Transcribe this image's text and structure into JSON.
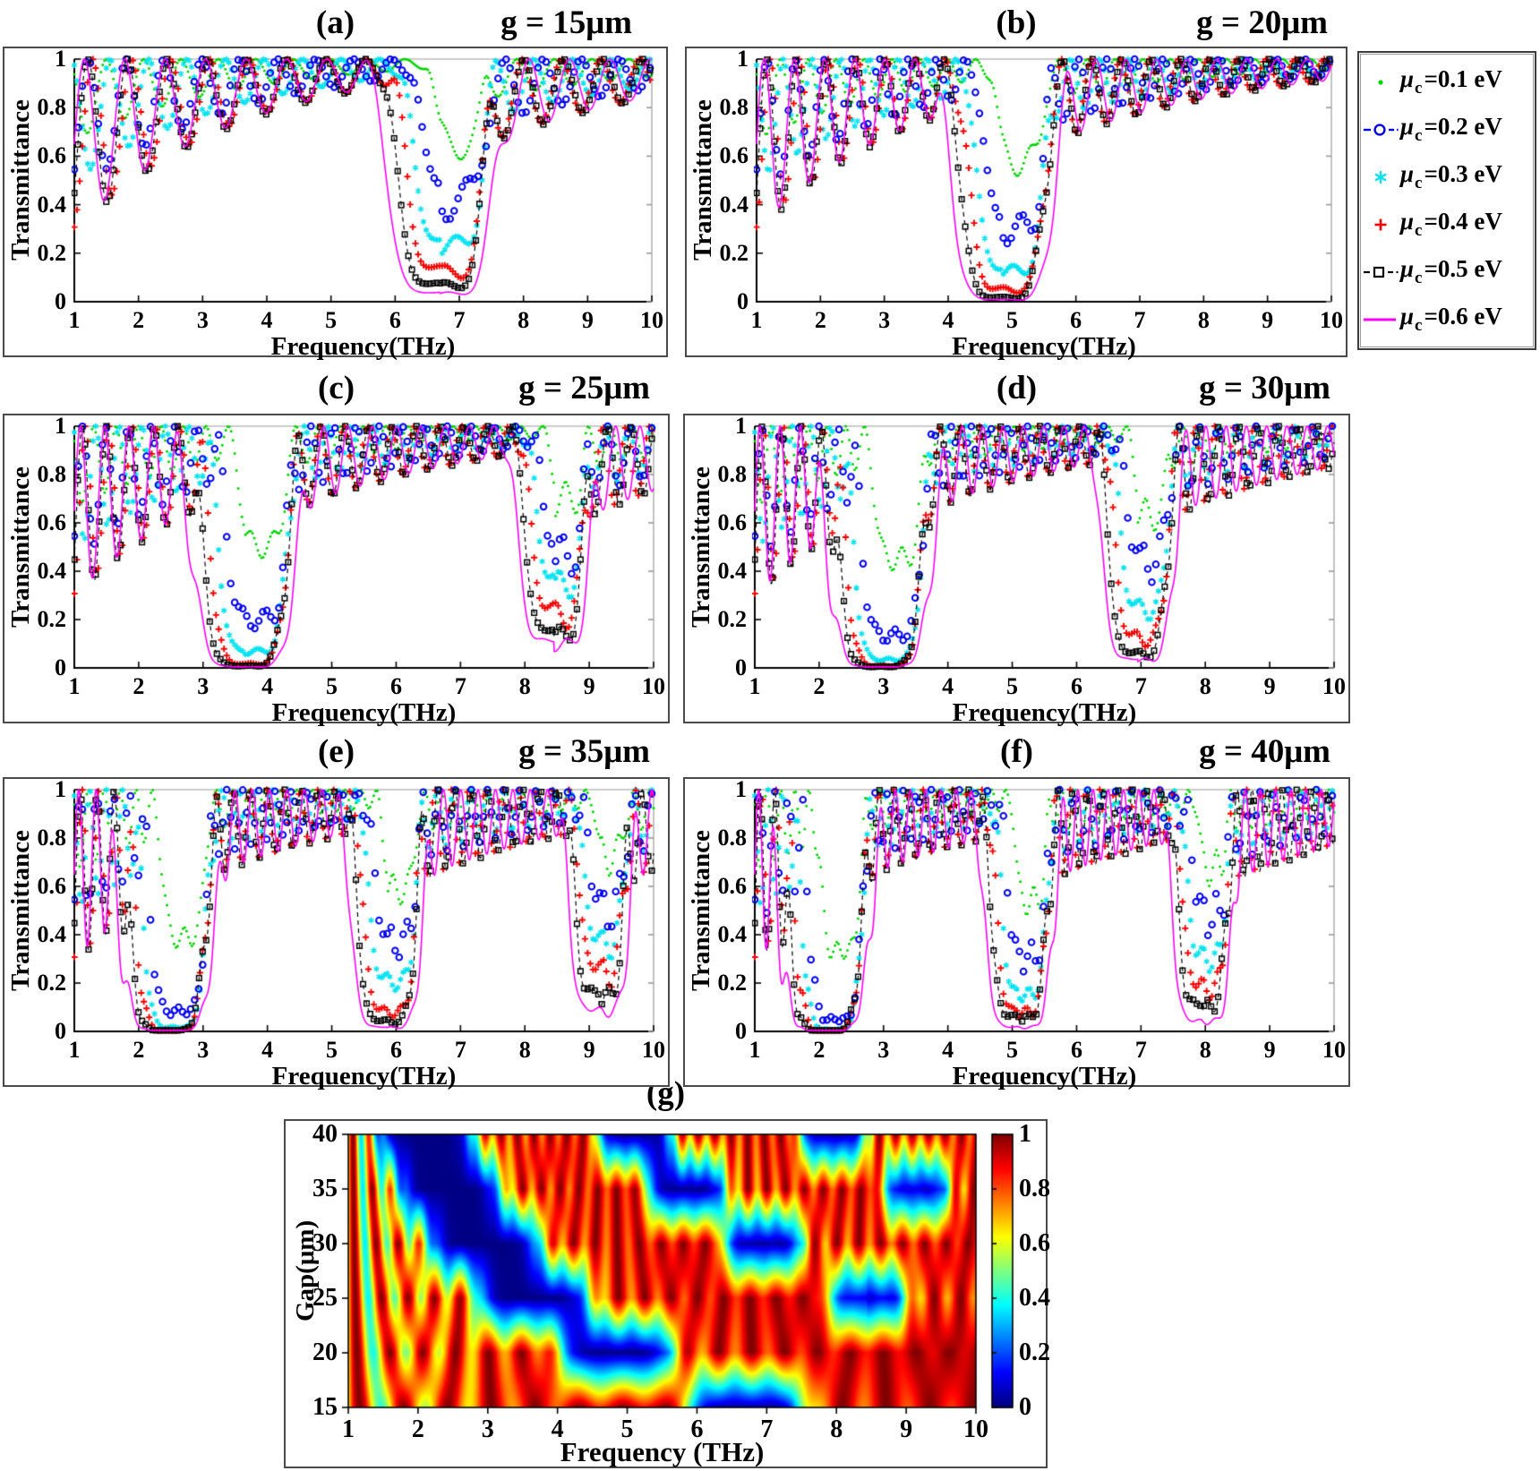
{
  "figure": {
    "description": "Transmittance spectra of a graphene-based THz structure for six gap sizes and six graphene chemical potentials, plus a transmittance map vs frequency and gap.",
    "background_color": "#ffffff",
    "frame_color": "#4a4a4a"
  },
  "legend": {
    "items_note": "marker + chemical potential labels",
    "mu_symbol": "μ",
    "mu_subscript": "c"
  },
  "chart_data": {
    "type": "multi-panel",
    "axes_shared": {
      "xlabel": "Frequency(THz)",
      "ylabel": "Transmittance",
      "x_range_thz": [
        1,
        10
      ],
      "y_range": [
        0,
        1
      ],
      "x_ticks": [
        "1",
        "2",
        "3",
        "4",
        "5",
        "6",
        "7",
        "8",
        "9",
        "10"
      ],
      "y_ticks": [
        "0",
        "0.2",
        "0.4",
        "0.6",
        "0.8",
        "1"
      ]
    },
    "series": [
      {
        "mu": "μ",
        "sub": "c",
        "value": "=0.1 eV",
        "mu_c_ev": 0.1,
        "color": "#00d400",
        "marker": "dot",
        "osc_amp": 0.33,
        "phase": 0.9,
        "period_scale": 0.97,
        "dip_width_scale": 0.55,
        "center_shift": 0.45,
        "marker_every": 4,
        "marker_size": 1.5
      },
      {
        "mu": "μ",
        "sub": "c",
        "value": "=0.2 eV",
        "mu_c_ev": 0.2,
        "color": "#0000f0",
        "marker": "open-circle",
        "osc_amp": 0.55,
        "phase": 4.0,
        "period_scale": 0.985,
        "dip_width_scale": 0.72,
        "center_shift": 0.3,
        "marker_every": 9,
        "marker_size": 3.3
      },
      {
        "mu": "μ",
        "sub": "c",
        "value": "=0.3 eV",
        "mu_c_ev": 0.3,
        "color": "#00e2f2",
        "marker": "asterisk",
        "osc_amp": 0.5,
        "phase": 0.45,
        "period_scale": 1.0,
        "dip_width_scale": 0.82,
        "center_shift": 0.2,
        "marker_every": 6,
        "marker_size": 3.3
      },
      {
        "mu": "μ",
        "sub": "c",
        "value": "=0.4 eV",
        "mu_c_ev": 0.4,
        "color": "#f50000",
        "marker": "plus",
        "osc_amp": 0.7,
        "phase": 3.35,
        "period_scale": 1.015,
        "dip_width_scale": 0.9,
        "center_shift": 0.1,
        "marker_every": 6,
        "marker_size": 3.6
      },
      {
        "mu": "μ",
        "sub": "c",
        "value": "=0.5 eV",
        "mu_c_ev": 0.5,
        "color": "#000000",
        "marker": "open-square-dashed",
        "osc_amp": 0.72,
        "phase": 4.15,
        "period_scale": 1.03,
        "dip_width_scale": 1.0,
        "center_shift": 0.0,
        "marker_every": 8,
        "marker_size": 2.8
      },
      {
        "mu": "μ",
        "sub": "c",
        "value": "=0.6 eV",
        "mu_c_ev": 0.6,
        "color": "#ff00ff",
        "marker": "solid-line",
        "osc_amp": 0.7,
        "phase": 4.71,
        "period_scale": 1.05,
        "dip_width_scale": 1.25,
        "center_shift": 0.0,
        "marker_every": 1,
        "marker_size": 1.6
      }
    ],
    "panels": [
      {
        "id": "a",
        "label": "(a)",
        "gap_label": "g = 15μm",
        "gap_um": 15,
        "fringe_period_thz": 0.6,
        "stopbands": [
          {
            "center_thz": 6.7,
            "halfwidth_thz": 0.62,
            "min_transmittance_by_series": [
              0.72,
              0.5,
              0.27,
              0.15,
              0.08,
              0.04
            ]
          }
        ]
      },
      {
        "id": "b",
        "label": "(b)",
        "gap_label": "g = 20μm",
        "gap_um": 20,
        "fringe_period_thz": 0.45,
        "stopbands": [
          {
            "center_thz": 4.85,
            "halfwidth_thz": 0.6,
            "min_transmittance_by_series": [
              0.64,
              0.36,
              0.15,
              0.06,
              0.02,
              0.01
            ]
          }
        ]
      },
      {
        "id": "c",
        "label": "(c)",
        "gap_label": "g = 25μm",
        "gap_um": 25,
        "fringe_period_thz": 0.36,
        "stopbands": [
          {
            "center_thz": 3.65,
            "halfwidth_thz": 0.6,
            "min_transmittance_by_series": [
              0.56,
              0.24,
              0.08,
              0.02,
              0.01,
              0.005
            ]
          },
          {
            "center_thz": 8.45,
            "halfwidth_thz": 0.42,
            "min_transmittance_by_series": [
              0.77,
              0.55,
              0.4,
              0.27,
              0.17,
              0.12
            ]
          }
        ]
      },
      {
        "id": "d",
        "label": "(d)",
        "gap_label": "g = 30μm",
        "gap_um": 30,
        "fringe_period_thz": 0.3,
        "stopbands": [
          {
            "center_thz": 2.95,
            "halfwidth_thz": 0.6,
            "min_transmittance_by_series": [
              0.5,
              0.16,
              0.04,
              0.01,
              0.006,
              0.004
            ]
          },
          {
            "center_thz": 6.95,
            "halfwidth_thz": 0.42,
            "min_transmittance_by_series": [
              0.7,
              0.52,
              0.28,
              0.15,
              0.07,
              0.04
            ]
          }
        ]
      },
      {
        "id": "e",
        "label": "(e)",
        "gap_label": "g = 35μm",
        "gap_um": 35,
        "fringe_period_thz": 0.257,
        "stopbands": [
          {
            "center_thz": 2.45,
            "halfwidth_thz": 0.55,
            "min_transmittance_by_series": [
              0.43,
              0.1,
              0.02,
              0.006,
              0.004,
              0.003
            ]
          },
          {
            "center_thz": 5.85,
            "halfwidth_thz": 0.42,
            "min_transmittance_by_series": [
              0.65,
              0.44,
              0.24,
              0.1,
              0.05,
              0.02
            ]
          },
          {
            "center_thz": 9.15,
            "halfwidth_thz": 0.35,
            "min_transmittance_by_series": [
              0.8,
              0.6,
              0.42,
              0.3,
              0.18,
              0.1
            ]
          }
        ]
      },
      {
        "id": "f",
        "label": "(f)",
        "gap_label": "g = 40μm",
        "gap_um": 40,
        "fringe_period_thz": 0.225,
        "stopbands": [
          {
            "center_thz": 2.1,
            "halfwidth_thz": 0.52,
            "min_transmittance_by_series": [
              0.37,
              0.06,
              0.01,
              0.004,
              0.003,
              0.002
            ]
          },
          {
            "center_thz": 5.1,
            "halfwidth_thz": 0.4,
            "min_transmittance_by_series": [
              0.6,
              0.37,
              0.18,
              0.1,
              0.07,
              0.02
            ]
          },
          {
            "center_thz": 7.95,
            "halfwidth_thz": 0.35,
            "min_transmittance_by_series": [
              0.75,
              0.57,
              0.35,
              0.22,
              0.13,
              0.05
            ]
          }
        ]
      }
    ],
    "heatmap": {
      "type": "heatmap",
      "label": "(g)",
      "xlabel": "Frequency (THz)",
      "ylabel": "Gap(μm)",
      "x_range_thz": [
        1,
        10
      ],
      "gap_range_um": [
        15,
        40
      ],
      "x_ticks": [
        "1",
        "2",
        "3",
        "4",
        "5",
        "6",
        "7",
        "8",
        "9",
        "10"
      ],
      "y_ticks": [
        "40",
        "35",
        "30",
        "25",
        "20",
        "15"
      ],
      "value_range": [
        0,
        1
      ],
      "colormap": "jet",
      "colorbar_ticks": [
        "1",
        "0.8",
        "0.6",
        "0.4",
        "0.2",
        "0"
      ],
      "gap_rows_um": [
        15,
        20,
        25,
        30,
        35,
        40
      ],
      "content_note": "Transmittance map; stop-band (blue) shifts from ~6-7.5 THz at g=15μm down to ~1.4-2.8 THz at g=40μm, with higher-order blue stop-band blobs at larger gaps and red/dark-red Fabry-Perot fringes elsewhere."
    }
  }
}
